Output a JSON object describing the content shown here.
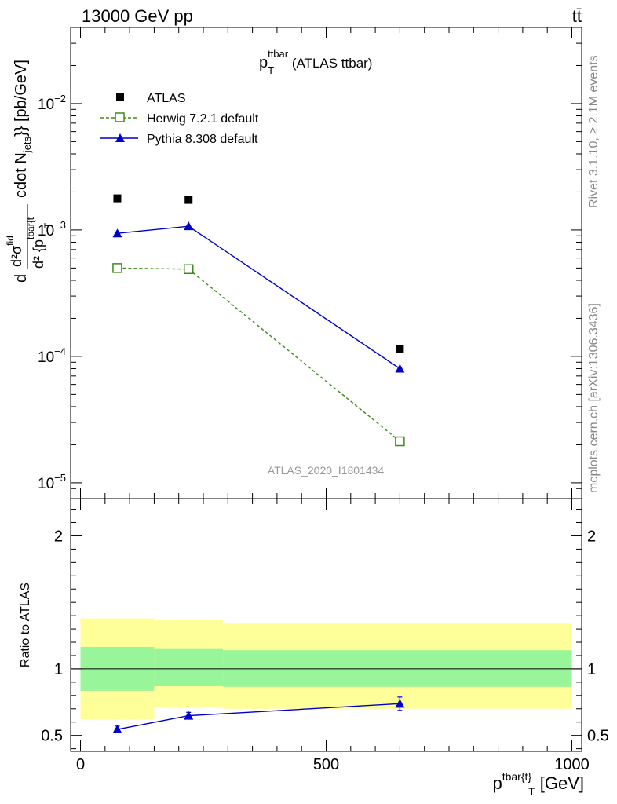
{
  "header": {
    "energy_label": "13000 GeV pp",
    "process_label": "tt̄"
  },
  "side_labels": {
    "rivet": "Rivet 3.1.10, ≥ 2.1M events",
    "mcplots": "mcplots.cern.ch [arXiv:1306.3436]"
  },
  "colors": {
    "atlas": "#000000",
    "herwig": "#3a8c14",
    "pythia": "#0000cc",
    "band_inner": "#99f599",
    "band_outer": "#ffff99",
    "watermark": "#999999"
  },
  "chart_data": [
    {
      "type": "scatter",
      "panel": "main",
      "title_main": "p",
      "title_sup": "ttbar",
      "title_sub": "T",
      "title_suffix": " (ATLAS ttbar)",
      "ylabel": "d d²σ^fid / d² {p_T^tbar{t cdot N_jets}} [pb/GeV]",
      "ylabel_main": "d",
      "ylabel_frac_num": "d²σ",
      "ylabel_frac_num_sup": "fid",
      "ylabel_frac_den": "d² {p",
      "ylabel_frac_den_sup": "tbar{t",
      "ylabel_frac_den_sub": "T",
      "ylabel_tail": "cdot N",
      "ylabel_tail_sub": "jets",
      "ylabel_end": "}} [pb/GeV]",
      "yscale": "log",
      "ylim": [
        7.5e-06,
        0.04
      ],
      "xlim": [
        -20,
        1020
      ],
      "y_ticks": [
        {
          "value": 1e-05,
          "base": "10",
          "exp": "−5"
        },
        {
          "value": 0.0001,
          "base": "10",
          "exp": "−4"
        },
        {
          "value": 0.001,
          "base": "10",
          "exp": "−3"
        },
        {
          "value": 0.01,
          "base": "10",
          "exp": "−2"
        }
      ],
      "legend_position": "top-left",
      "watermark": "ATLAS_2020_I1801434",
      "series": [
        {
          "name": "ATLAS",
          "marker": "filled-square",
          "line": false,
          "x": [
            75,
            220,
            650
          ],
          "y": [
            0.00178,
            0.00173,
            0.000114
          ]
        },
        {
          "name": "Herwig 7.2.1 default",
          "marker": "open-square",
          "line": "dashed",
          "x": [
            75,
            220,
            650
          ],
          "y": [
            0.0005,
            0.00049,
            2.13e-05
          ]
        },
        {
          "name": "Pythia 8.308 default",
          "marker": "filled-triangle",
          "line": "solid",
          "x": [
            75,
            220,
            650
          ],
          "y": [
            0.00094,
            0.00107,
            8e-05
          ]
        }
      ]
    },
    {
      "type": "scatter",
      "panel": "ratio",
      "ylabel": "Ratio to ATLAS",
      "xlabel": "p^{tbar{t}}_T [GeV]",
      "xlabel_main": "p",
      "xlabel_sup": "tbar{t}",
      "xlabel_sub": "T",
      "xlabel_tail": " [GeV]",
      "xlim": [
        -20,
        1020
      ],
      "ylim": [
        0.38,
        2.28
      ],
      "x_ticks": [
        0,
        500,
        1000
      ],
      "y_ticks": [
        0.5,
        1,
        2
      ],
      "bins": [
        {
          "x0": 0,
          "x1": 150,
          "inner": [
            0.835,
            1.165
          ],
          "outer": [
            0.62,
            1.38
          ]
        },
        {
          "x0": 150,
          "x1": 290,
          "inner": [
            0.87,
            1.155
          ],
          "outer": [
            0.71,
            1.365
          ]
        },
        {
          "x0": 290,
          "x1": 1000,
          "inner": [
            0.865,
            1.14
          ],
          "outer": [
            0.7,
            1.34
          ]
        }
      ],
      "reference_line": 1,
      "series": [
        {
          "name": "Pythia 8.308 default",
          "marker": "filled-triangle",
          "line": "solid",
          "x": [
            75,
            220,
            650
          ],
          "y": [
            0.545,
            0.648,
            0.738
          ],
          "yerr": [
            0.025,
            0.025,
            0.05
          ]
        }
      ]
    }
  ]
}
